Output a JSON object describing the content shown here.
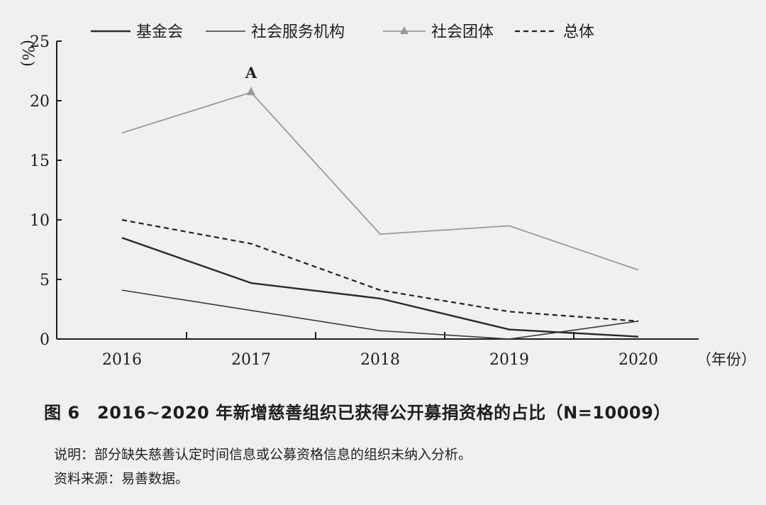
{
  "chart_data": {
    "type": "line",
    "ylabel": "%",
    "xunit": "（年份）",
    "x": [
      "2016",
      "2017",
      "2018",
      "2019",
      "2020"
    ],
    "yticks": [
      0,
      5,
      10,
      15,
      20,
      25
    ],
    "ylim": [
      0,
      25
    ],
    "grid": false,
    "legend_position": "top",
    "series": [
      {
        "name": "基金会",
        "values": [
          8.5,
          4.7,
          3.4,
          0.8,
          0.2
        ],
        "color": "#2a2a2a",
        "style": "solid"
      },
      {
        "name": "社会服务机构",
        "values": [
          4.1,
          2.4,
          0.7,
          0.0,
          1.5
        ],
        "color": "#3a3a3a",
        "style": "solid-thin"
      },
      {
        "name": "社会团体",
        "values": [
          17.3,
          20.7,
          8.8,
          9.5,
          5.8
        ],
        "color": "#9a9a9a",
        "style": "solid-triangle"
      },
      {
        "name": "总体",
        "values": [
          10.0,
          8.0,
          4.1,
          2.3,
          1.5
        ],
        "color": "#222222",
        "style": "dashed"
      }
    ],
    "annotations": [
      {
        "text": "A",
        "series": "社会团体",
        "x": "2017"
      }
    ]
  },
  "caption": {
    "title": "图 6　2016~2020 年新增慈善组织已获得公开募捐资格的占比（N=10009）",
    "note": "说明：部分缺失慈善认定时间信息或公募资格信息的组织未纳入分析。",
    "source": "资料来源：易善数据。"
  }
}
